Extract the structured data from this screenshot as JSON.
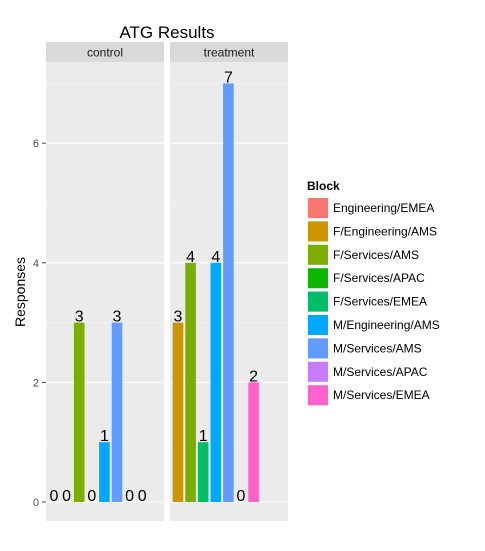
{
  "chart_data": {
    "type": "bar",
    "title": "ATG Results",
    "xlabel": "",
    "ylabel": "Responses",
    "ylim": [
      0,
      7.35
    ],
    "yticks": [
      0,
      2,
      4,
      6
    ],
    "grid": true,
    "legend_position": "right",
    "legend_title": "Block",
    "facets": [
      "control",
      "treatment"
    ],
    "series": [
      {
        "name": "Engineering/EMEA",
        "color": "#F8766D",
        "values": [
          0,
          null
        ]
      },
      {
        "name": "F/Engineering/AMS",
        "color": "#CD9600",
        "values": [
          0,
          3
        ]
      },
      {
        "name": "F/Services/AMS",
        "color": "#7CAE00",
        "values": [
          3,
          4
        ]
      },
      {
        "name": "F/Services/APAC",
        "color": "#0CB702",
        "values": [
          0,
          0
        ]
      },
      {
        "name": "F/Services/EMEA",
        "color": "#00BE67",
        "values": [
          0,
          1
        ]
      },
      {
        "name": "M/Engineering/AMS",
        "color": "#00A9FF",
        "values": [
          1,
          4
        ]
      },
      {
        "name": "M/Services/AMS",
        "color": "#619CFF",
        "values": [
          3,
          7
        ]
      },
      {
        "name": "M/Services/APAC",
        "color": "#C77CFF",
        "values": [
          0,
          0
        ]
      },
      {
        "name": "M/Services/EMEA",
        "color": "#FF61CC",
        "values": [
          0,
          2
        ]
      }
    ],
    "panels": [
      {
        "label": "control",
        "slots": [
          0,
          1,
          2,
          3,
          5,
          6,
          7,
          8
        ]
      },
      {
        "label": "treatment",
        "slots": [
          1,
          2,
          4,
          5,
          6,
          3,
          8
        ]
      }
    ]
  }
}
